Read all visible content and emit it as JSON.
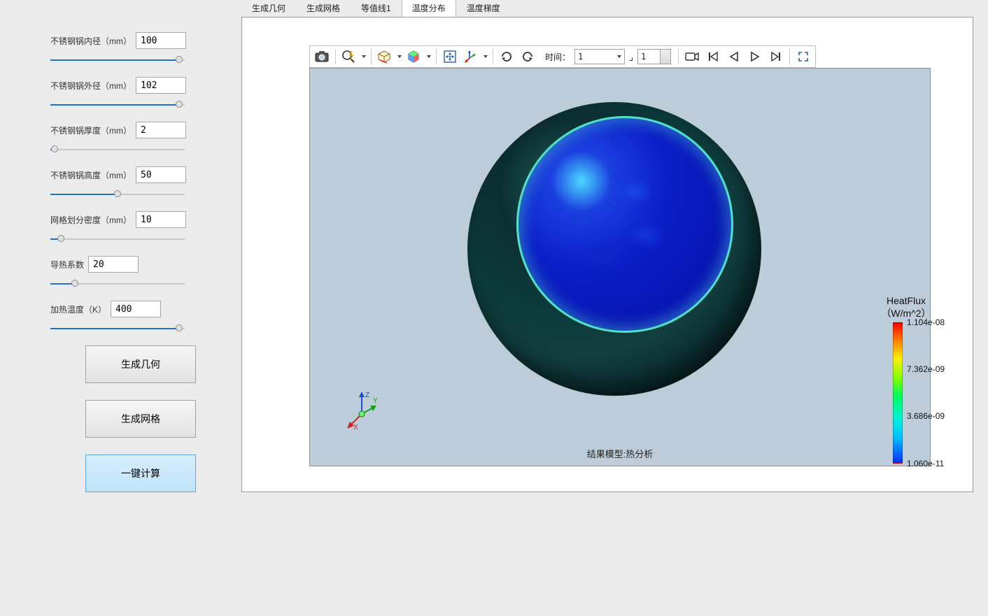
{
  "tabs": [
    {
      "label": "生成几何",
      "active": false
    },
    {
      "label": "生成网格",
      "active": false
    },
    {
      "label": "等值线1",
      "active": false
    },
    {
      "label": "温度分布",
      "active": true
    },
    {
      "label": "温度梯度",
      "active": false
    }
  ],
  "params": [
    {
      "label": "不锈钢锅内径（mm）",
      "value": "100",
      "slider_pct": 96
    },
    {
      "label": "不锈钢锅外径（mm）",
      "value": "102",
      "slider_pct": 96
    },
    {
      "label": "不锈钢锅厚度（mm）",
      "value": "2",
      "slider_pct": 3
    },
    {
      "label": "不锈钢锅高度（mm）",
      "value": "50",
      "slider_pct": 50
    },
    {
      "label": "网格划分密度（mm）",
      "value": "10",
      "slider_pct": 8
    },
    {
      "label": "导热系数",
      "value": "20",
      "slider_pct": 18
    },
    {
      "label": "加热温度（K）",
      "value": "400",
      "slider_pct": 96
    }
  ],
  "buttons": {
    "gen_geom": "生成几何",
    "gen_mesh": "生成网格",
    "compute": "一键计算"
  },
  "toolbar": {
    "time_label": "时间：",
    "combo_value": "1",
    "spin_value": "1"
  },
  "sim": {
    "caption": "结果模型:热分析",
    "axes": {
      "x": "X",
      "y": "Y",
      "z": "Z"
    }
  },
  "legend": {
    "title1": "HeatFlux",
    "title2": "（W/m^2）",
    "ticks": [
      {
        "label": "1.104e-08",
        "pos_pct": 0
      },
      {
        "label": "7.362e-09",
        "pos_pct": 33
      },
      {
        "label": "3.686e-09",
        "pos_pct": 66
      },
      {
        "label": "1.060e-11",
        "pos_pct": 100
      }
    ],
    "gradient": [
      "#ff0000",
      "#ff7a00",
      "#ffee00",
      "#7dff00",
      "#00ff5a",
      "#00f5d8",
      "#00bfff",
      "#0030ff"
    ]
  },
  "colors": {
    "pot_outer": "#0c2e33",
    "pot_inner": "#0a1fc8",
    "canvas_bg": "#bccdd9"
  }
}
